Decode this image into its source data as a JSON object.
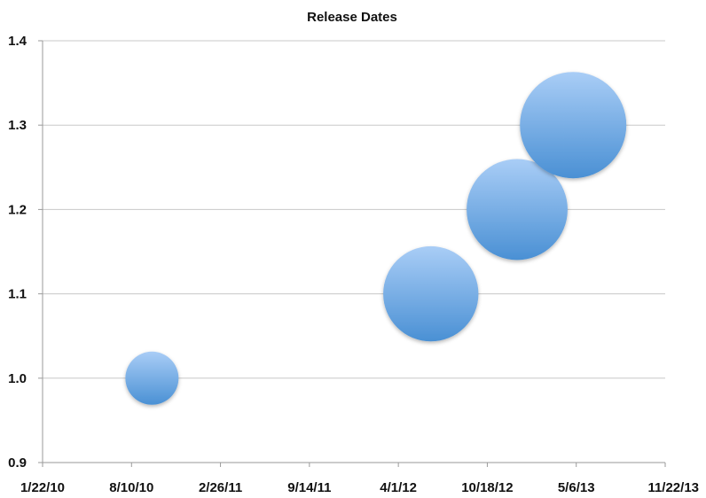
{
  "chart_data": {
    "type": "scatter",
    "title": "Release Dates",
    "xlabel": "",
    "ylabel": "",
    "x_ticks": [
      "1/22/10",
      "8/10/10",
      "2/26/11",
      "9/14/11",
      "4/1/12",
      "10/18/12",
      "5/6/13",
      "11/22/13"
    ],
    "xlim": [
      "2010-01-22",
      "2013-11-22"
    ],
    "ylim": [
      0.9,
      1.4
    ],
    "y_ticks": [
      "0.9",
      "1.0",
      "1.1",
      "1.2",
      "1.3",
      "1.4"
    ],
    "grid": true,
    "legend": "none",
    "series": [
      {
        "points": [
          {
            "x": "2010-09-25",
            "y": 1.0,
            "size": 1
          },
          {
            "x": "2012-06-13",
            "y": 1.1,
            "size": 3.2
          },
          {
            "x": "2012-12-24",
            "y": 1.2,
            "size": 3.6
          },
          {
            "x": "2013-04-29",
            "y": 1.3,
            "size": 4.0
          }
        ]
      }
    ],
    "colors": {
      "bubble_light": "#a9cdf6",
      "bubble_dark": "#4a90d4"
    }
  }
}
